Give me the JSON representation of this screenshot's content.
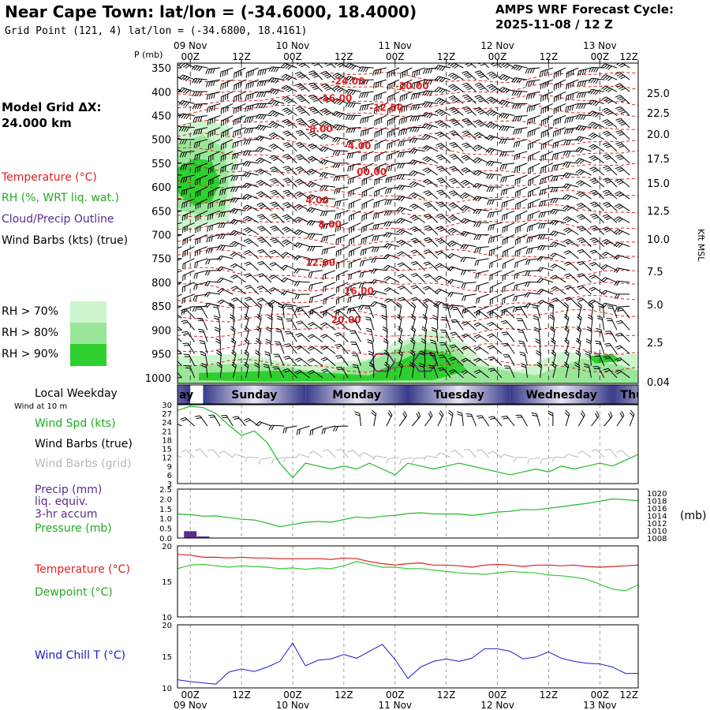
{
  "header": {
    "title": "Near Cape Town:  lat/lon = (-34.6000, 18.4000)",
    "grid_point": "Grid Point (121, 4) lat/lon = (-34.6800, 18.4161)",
    "cycle_label": "AMPS WRF Forecast Cycle:",
    "cycle_value": "2025-11-08 / 12  Z"
  },
  "sidebar": {
    "model_grid_line1": "Model Grid ΔX:",
    "model_grid_line2": " 24.000 km",
    "legend_temperature": "Temperature (°C)",
    "legend_rh": "RH (%, WRT liq. wat.)",
    "legend_cloud": "Cloud/Precip Outline",
    "legend_wind": "Wind Barbs (kts) (true)",
    "rh70": "RH > 70%",
    "rh80": "RH > 80%",
    "rh90": "RH > 90%",
    "local_weekday": "Local Weekday",
    "wind_at_10m": "Wind at 10 m",
    "wind_spd": "Wind Spd (kts)",
    "wind_barbs_true": "Wind Barbs (true)",
    "wind_barbs_grid": "Wind Barbs (grid)",
    "precip1": "Precip (mm)",
    "precip2": "liq. equiv.",
    "precip3": "3-hr accum",
    "pressure": "Pressure (mb)",
    "temperature": "Temperature (°C)",
    "dewpoint": "Dewpoint (°C)",
    "wind_chill": "Wind Chill T (°C)"
  },
  "colors": {
    "temperature": "#e02020",
    "rh70": "#cdf5cd",
    "rh80": "#99e699",
    "rh90": "#2fcf2f",
    "cloud": "#5a2d8c",
    "pressure": "#22bb22",
    "dewpoint": "#33cc33",
    "windchill": "#1a1acc",
    "grid_barbs": "#b8b8b8",
    "weekday_dark": "#3a3a8a"
  },
  "chart_data": [
    {
      "type": "area",
      "name": "time-height cross section",
      "ylabel": "P (mb)",
      "ylabel_right": "Kft MSL",
      "pressure_levels": [
        350,
        400,
        450,
        500,
        550,
        600,
        650,
        700,
        750,
        800,
        850,
        900,
        950,
        1000
      ],
      "height_ticks_kft": [
        "25.0",
        "22.5",
        "20.0",
        "17.5",
        "15.0",
        "12.5",
        "10.0",
        "7.5",
        "5.0",
        "2.5",
        "0.04"
      ],
      "x_ticks_top": [
        "00Z",
        "12Z",
        "00Z",
        "12Z",
        "00Z",
        "12Z",
        "00Z",
        "12Z",
        "00Z",
        "12Z"
      ],
      "date_labels_top": [
        "09 Nov",
        "10 Nov",
        "11 Nov",
        "12 Nov",
        "13 Nov"
      ],
      "temperature_labels": [
        {
          "text": "-24.00",
          "time_h": 36,
          "p": 385
        },
        {
          "text": "-20.00",
          "time_h": 51,
          "p": 395
        },
        {
          "text": "-16.00",
          "time_h": 33,
          "p": 420
        },
        {
          "text": "-12.00",
          "time_h": 45,
          "p": 440
        },
        {
          "text": "-8.00",
          "time_h": 30,
          "p": 485
        },
        {
          "text": "-4.00",
          "time_h": 39,
          "p": 520
        },
        {
          "text": "00.00",
          "time_h": 42,
          "p": 575
        },
        {
          "text": "4.00",
          "time_h": 30,
          "p": 635
        },
        {
          "text": "8.00",
          "time_h": 33,
          "p": 685
        },
        {
          "text": "12.00",
          "time_h": 30,
          "p": 765
        },
        {
          "text": "16.00",
          "time_h": 39,
          "p": 825
        },
        {
          "text": "20.00",
          "time_h": 36,
          "p": 885
        }
      ]
    },
    {
      "type": "line",
      "name": "10 m wind speed",
      "ylim": [
        3,
        30
      ],
      "y_ticks": [
        3,
        6,
        9,
        12,
        15,
        18,
        21,
        24,
        27,
        30
      ],
      "x_hours": [
        0,
        3,
        6,
        9,
        12,
        15,
        18,
        21,
        24,
        27,
        30,
        33,
        36,
        39,
        42,
        45,
        48,
        51,
        54,
        57,
        60,
        63,
        66,
        69,
        72,
        75,
        78,
        81,
        84,
        87,
        90,
        93,
        96,
        99,
        102,
        105,
        108
      ],
      "series": [
        {
          "values": [
            28,
            29.5,
            29,
            27,
            23,
            19.5,
            21,
            17,
            10,
            5,
            10,
            9,
            8,
            9,
            8,
            10,
            8,
            6,
            10,
            9,
            8,
            9,
            10,
            9,
            8,
            7,
            6,
            7,
            8,
            7,
            9,
            8,
            9,
            10,
            9,
            11,
            13
          ]
        }
      ]
    },
    {
      "type": "line",
      "name": "precip and pressure",
      "ylim": [
        0,
        2.5
      ],
      "y_ticks": [
        "0.0",
        "0.5",
        "1.0",
        "1.5",
        "2.0",
        "2.5"
      ],
      "y_ticks_right": [
        1008,
        1010,
        1012,
        1014,
        1016,
        1018,
        1020
      ],
      "ylabel_right": "(mb)",
      "precip_bars": [
        {
          "x_hour": 3,
          "value": 0.35
        },
        {
          "x_hour": 6,
          "value": 0.08
        }
      ],
      "x_hours": [
        0,
        3,
        6,
        9,
        12,
        15,
        18,
        21,
        24,
        27,
        30,
        33,
        36,
        39,
        42,
        45,
        48,
        51,
        54,
        57,
        60,
        63,
        66,
        69,
        72,
        75,
        78,
        81,
        84,
        87,
        90,
        93,
        96,
        99,
        102,
        105,
        108
      ],
      "series": [
        {
          "values": [
            1014.4,
            1014.2,
            1013.8,
            1013.9,
            1013.4,
            1013.0,
            1012.8,
            1012.0,
            1011.0,
            1011.6,
            1012.2,
            1012.4,
            1012.2,
            1012.9,
            1013.6,
            1013.3,
            1013.8,
            1014.0,
            1014.5,
            1014.7,
            1014.4,
            1014.4,
            1014.4,
            1014.0,
            1014.4,
            1014.9,
            1015.1,
            1015.6,
            1015.5,
            1015.9,
            1016.3,
            1016.8,
            1017.2,
            1017.8,
            1018.4,
            1018.2,
            1017.9
          ]
        }
      ]
    },
    {
      "type": "line",
      "name": "temperature and dewpoint",
      "ylim": [
        10,
        20
      ],
      "y_ticks": [
        10,
        15,
        20
      ],
      "x_hours": [
        0,
        3,
        6,
        9,
        12,
        15,
        18,
        21,
        24,
        27,
        30,
        33,
        36,
        39,
        42,
        45,
        48,
        51,
        54,
        57,
        60,
        63,
        66,
        69,
        72,
        75,
        78,
        81,
        84,
        87,
        90,
        93,
        96,
        99,
        102,
        105,
        108
      ],
      "series": [
        {
          "name": "Temperature (°C)",
          "values": [
            18.8,
            18.7,
            18.4,
            18.4,
            18.3,
            18.4,
            18.3,
            18.3,
            18.2,
            18.2,
            18.2,
            18.2,
            18.1,
            18.3,
            18.2,
            17.8,
            17.5,
            17.3,
            17.5,
            17.6,
            17.3,
            17.3,
            17.2,
            17.0,
            17.3,
            17.4,
            17.3,
            17.1,
            17.3,
            17.3,
            17.2,
            17.3,
            17.1,
            17.0,
            17.1,
            17.2,
            17.3
          ]
        },
        {
          "name": "Dewpoint (°C)",
          "values": [
            16.8,
            17.3,
            17.4,
            17.2,
            17.0,
            17.2,
            17.1,
            17.0,
            16.8,
            16.9,
            16.7,
            16.9,
            16.8,
            17.2,
            17.8,
            17.4,
            17.0,
            17.0,
            16.8,
            16.8,
            16.6,
            16.4,
            16.2,
            16.1,
            16.0,
            16.2,
            16.4,
            16.3,
            16.2,
            15.9,
            15.8,
            15.6,
            15.3,
            14.6,
            13.9,
            13.7,
            14.5
          ]
        }
      ]
    },
    {
      "type": "line",
      "name": "wind chill",
      "ylim": [
        10,
        20
      ],
      "y_ticks": [
        10,
        15,
        20
      ],
      "x_ticks_bottom": [
        "00Z",
        "12Z",
        "00Z",
        "12Z",
        "00Z",
        "12Z",
        "00Z",
        "12Z",
        "00Z",
        "12Z"
      ],
      "date_labels_bottom": [
        "09 Nov",
        "10 Nov",
        "11 Nov",
        "12 Nov",
        "13 Nov"
      ],
      "x_hours": [
        0,
        3,
        6,
        9,
        12,
        15,
        18,
        21,
        24,
        27,
        30,
        33,
        36,
        39,
        42,
        45,
        48,
        51,
        54,
        57,
        60,
        63,
        66,
        69,
        72,
        75,
        78,
        81,
        84,
        87,
        90,
        93,
        96,
        99,
        102,
        105,
        108
      ],
      "series": [
        {
          "name": "Wind Chill T (°C)",
          "values": [
            11.3,
            11.0,
            10.8,
            10.6,
            12.5,
            13.0,
            12.6,
            13.3,
            14.2,
            17.1,
            13.5,
            14.4,
            14.6,
            15.3,
            14.7,
            15.8,
            16.9,
            14.5,
            11.5,
            13.3,
            14.2,
            14.6,
            14.2,
            14.7,
            16.2,
            16.2,
            15.8,
            14.6,
            14.9,
            15.7,
            14.7,
            14.2,
            13.9,
            13.8,
            13.3,
            12.3,
            12.3
          ]
        }
      ]
    }
  ],
  "weekdays": [
    "ay",
    "Sunday",
    "Monday",
    "Tuesday",
    "Wednesday",
    "Thurs"
  ]
}
